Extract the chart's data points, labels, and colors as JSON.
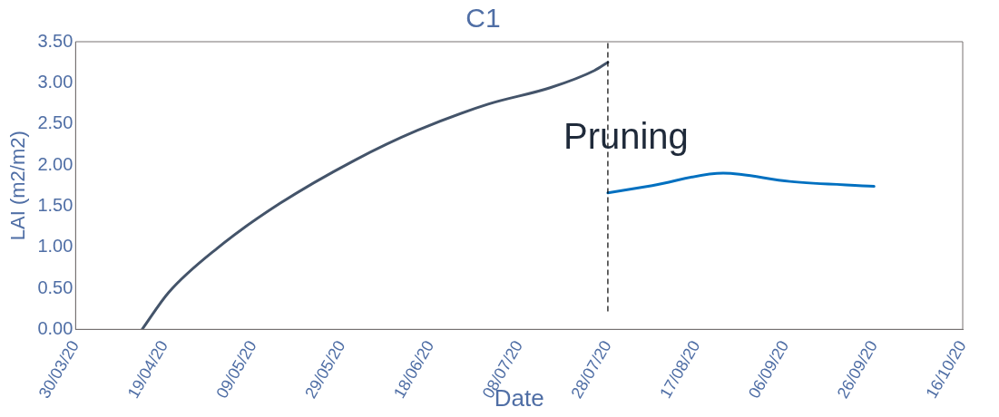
{
  "chart_data": {
    "type": "line",
    "title": "C1",
    "xlabel": "Date",
    "ylabel": "LAI (m2/m2)",
    "series": [
      {
        "color": "#44546a",
        "x": [
          "2020-04-14",
          "2020-04-20",
          "2020-05-01",
          "2020-05-15",
          "2020-06-01",
          "2020-06-15",
          "2020-07-01",
          "2020-07-15",
          "2020-07-25",
          "2020-07-28"
        ],
        "values": [
          0,
          0.45,
          0.99,
          1.53,
          2.06,
          2.42,
          2.74,
          2.94,
          3.15,
          3.25
        ]
      },
      {
        "color": "#0070c0",
        "x": [
          "2020-07-28",
          "2020-08-07",
          "2020-08-23",
          "2020-09-07",
          "2020-09-26"
        ],
        "values": [
          1.66,
          1.75,
          1.9,
          1.8,
          1.74
        ]
      }
    ],
    "xlim": [
      "2020-03-30",
      "2020-10-16"
    ],
    "xticks": [
      {
        "value": "2020-03-30",
        "label": "30/03/20"
      },
      {
        "value": "2020-04-19",
        "label": "19/04/20"
      },
      {
        "value": "2020-05-09",
        "label": "09/05/20"
      },
      {
        "value": "2020-05-29",
        "label": "29/05/20"
      },
      {
        "value": "2020-06-18",
        "label": "18/06/20"
      },
      {
        "value": "2020-07-08",
        "label": "08/07/20"
      },
      {
        "value": "2020-07-28",
        "label": "28/07/20"
      },
      {
        "value": "2020-08-17",
        "label": "17/08/20"
      },
      {
        "value": "2020-09-06",
        "label": "06/09/20"
      },
      {
        "value": "2020-09-26",
        "label": "26/09/20"
      },
      {
        "value": "2020-10-16",
        "label": "16/10/20"
      }
    ],
    "ylim": [
      0,
      3.5
    ],
    "yticks": [
      {
        "value": 0,
        "label": "0.00"
      },
      {
        "value": 0.5,
        "label": "0.50"
      },
      {
        "value": 1,
        "label": "1.00"
      },
      {
        "value": 1.5,
        "label": "1.50"
      },
      {
        "value": 2,
        "label": "2.00"
      },
      {
        "value": 2.5,
        "label": "2.50"
      },
      {
        "value": 3,
        "label": "3.00"
      },
      {
        "value": 3.5,
        "label": "3.50"
      }
    ],
    "ref_lines": [
      {
        "axis": "x",
        "value": "2020-07-28",
        "label": "Pruning",
        "color": "#000000",
        "line_style": "dashed"
      }
    ],
    "grid": false,
    "legend": false,
    "marker": "none",
    "line_style": "solid"
  }
}
